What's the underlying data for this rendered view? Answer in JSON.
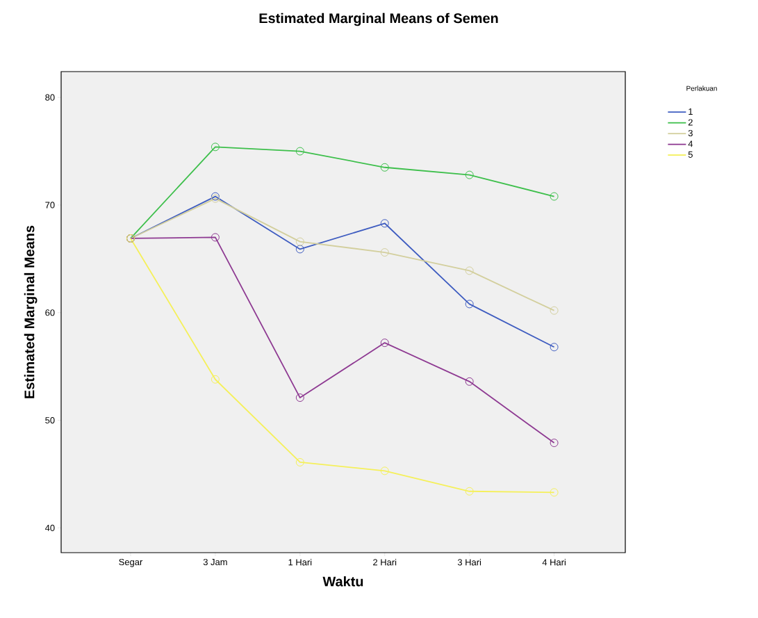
{
  "chart_data": {
    "type": "line",
    "title": "Estimated Marginal Means of Semen",
    "xlabel": "Waktu",
    "ylabel": "Estimated Marginal Means",
    "legend_title": "Perlakuan",
    "categories": [
      "Segar",
      "3 Jam",
      "1 Hari",
      "2 Hari",
      "3 Hari",
      "4 Hari"
    ],
    "series": [
      {
        "name": "1",
        "color": "#3e5cc0",
        "values": [
          66.9,
          70.8,
          65.9,
          68.3,
          60.8,
          56.8
        ]
      },
      {
        "name": "2",
        "color": "#3dbf4b",
        "values": [
          66.9,
          75.4,
          75.0,
          73.5,
          72.8,
          70.8
        ]
      },
      {
        "name": "3",
        "color": "#d3cf9d",
        "values": [
          66.9,
          70.6,
          66.6,
          65.6,
          63.9,
          60.2
        ]
      },
      {
        "name": "4",
        "color": "#8e3a92",
        "values": [
          66.9,
          67.0,
          52.1,
          57.2,
          53.6,
          47.9
        ]
      },
      {
        "name": "5",
        "color": "#f5f05a",
        "values": [
          66.9,
          53.8,
          46.1,
          45.3,
          43.4,
          43.3
        ]
      }
    ],
    "ylim": [
      37.7,
      82.4
    ],
    "yticks": [
      40,
      50,
      60,
      70,
      80
    ],
    "grid": false,
    "legend": "top right",
    "marker": "circle",
    "line_style": "solid"
  }
}
